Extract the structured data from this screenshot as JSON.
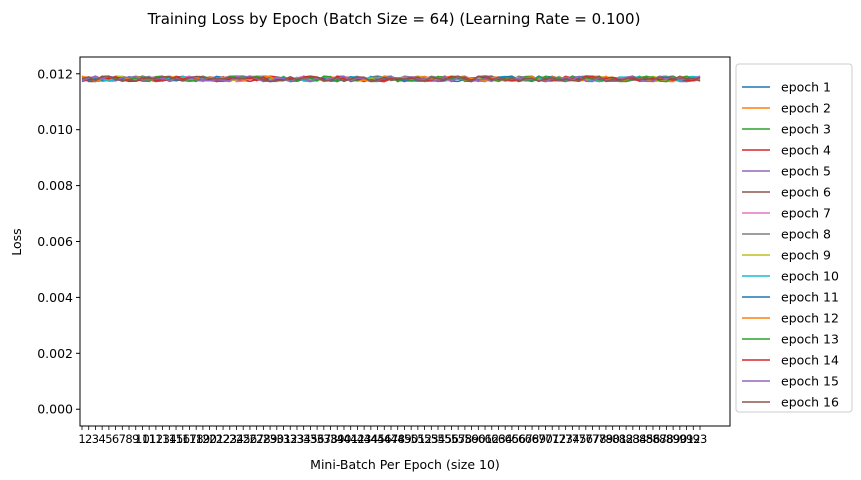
{
  "chart_data": {
    "type": "line",
    "title": "Training Loss by Epoch (Batch Size = 64) (Learning Rate = 0.100)",
    "xlabel": "Mini-Batch Per Epoch (size 10)",
    "ylabel": "Loss",
    "x": [
      1,
      2,
      3,
      4,
      5,
      6,
      7,
      8,
      9,
      10,
      11,
      12,
      13,
      14,
      15,
      16,
      17,
      18,
      19,
      20,
      21,
      22,
      23,
      24,
      25,
      26,
      27,
      28,
      29,
      30,
      31,
      32,
      33,
      34,
      35,
      36,
      37,
      38,
      39,
      40,
      41,
      42,
      43,
      44,
      45,
      46,
      47,
      48,
      49,
      50,
      51,
      52,
      53,
      54,
      55,
      56,
      57,
      58,
      59,
      60,
      61,
      62,
      63,
      64,
      65,
      66,
      67,
      68,
      69,
      70,
      71,
      72,
      73,
      74,
      75,
      76,
      77,
      78,
      79,
      80,
      81,
      82,
      83,
      84,
      85,
      86,
      87,
      88,
      89,
      90,
      91,
      92,
      93
    ],
    "ylim": [
      -0.0006,
      0.0126
    ],
    "yticks": [
      "0.000",
      "0.002",
      "0.004",
      "0.006",
      "0.008",
      "0.010",
      "0.012"
    ],
    "ytick_values": [
      0,
      0.002,
      0.004,
      0.006,
      0.008,
      0.01,
      0.012
    ],
    "grid": false,
    "legend_placement": "outside-right",
    "series_base": 0.01182,
    "series_amplitude": 0.0001,
    "series": [
      {
        "name": "epoch 1",
        "color": "#1f77b4"
      },
      {
        "name": "epoch 2",
        "color": "#ff7f0e"
      },
      {
        "name": "epoch 3",
        "color": "#2ca02c"
      },
      {
        "name": "epoch 4",
        "color": "#d62728"
      },
      {
        "name": "epoch 5",
        "color": "#9467bd"
      },
      {
        "name": "epoch 6",
        "color": "#8c564b"
      },
      {
        "name": "epoch 7",
        "color": "#e377c2"
      },
      {
        "name": "epoch 8",
        "color": "#7f7f7f"
      },
      {
        "name": "epoch 9",
        "color": "#bcbd22"
      },
      {
        "name": "epoch 10",
        "color": "#17becf"
      },
      {
        "name": "epoch 11",
        "color": "#1f77b4"
      },
      {
        "name": "epoch 12",
        "color": "#ff7f0e"
      },
      {
        "name": "epoch 13",
        "color": "#2ca02c"
      },
      {
        "name": "epoch 14",
        "color": "#d62728"
      },
      {
        "name": "epoch 15",
        "color": "#9467bd"
      },
      {
        "name": "epoch 16",
        "color": "#8c564b"
      }
    ]
  }
}
